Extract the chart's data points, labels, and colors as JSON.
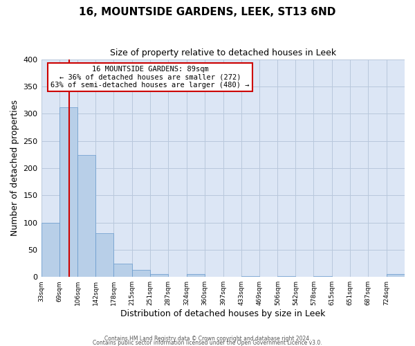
{
  "title": "16, MOUNTSIDE GARDENS, LEEK, ST13 6ND",
  "subtitle": "Size of property relative to detached houses in Leek",
  "xlabel": "Distribution of detached houses by size in Leek",
  "ylabel": "Number of detached properties",
  "bin_edges": [
    33,
    69,
    106,
    142,
    178,
    215,
    251,
    287,
    324,
    360,
    397,
    433,
    469,
    506,
    542,
    578,
    615,
    651,
    687,
    724,
    760
  ],
  "bar_heights": [
    99,
    312,
    224,
    80,
    25,
    13,
    5,
    0,
    5,
    0,
    0,
    1,
    0,
    1,
    0,
    1,
    0,
    0,
    0,
    5
  ],
  "bar_color": "#b8cfe8",
  "bar_edgecolor": "#6699cc",
  "vline_x": 89,
  "vline_color": "#cc0000",
  "annotation_title": "16 MOUNTSIDE GARDENS: 89sqm",
  "annotation_line1": "← 36% of detached houses are smaller (272)",
  "annotation_line2": "63% of semi-detached houses are larger (480) →",
  "annotation_box_facecolor": "#ffffff",
  "annotation_box_edgecolor": "#cc0000",
  "ylim": [
    0,
    400
  ],
  "yticks": [
    0,
    50,
    100,
    150,
    200,
    250,
    300,
    350,
    400
  ],
  "background_color": "#dce6f5",
  "footer1": "Contains HM Land Registry data © Crown copyright and database right 2024.",
  "footer2": "Contains public sector information licensed under the Open Government Licence v3.0."
}
